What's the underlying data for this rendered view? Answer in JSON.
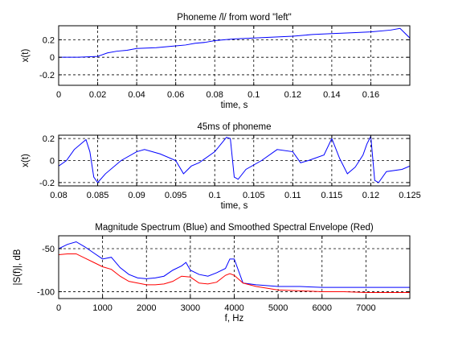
{
  "chart_data": [
    {
      "type": "line",
      "title": "Phoneme /l/ from word \"left\"",
      "xlabel": "time, s",
      "ylabel": "x(t)",
      "xlim": [
        0,
        0.18
      ],
      "ylim": [
        -0.32,
        0.36
      ],
      "xticks": [
        0,
        0.02,
        0.04,
        0.06,
        0.08,
        0.1,
        0.12,
        0.14,
        0.16
      ],
      "xtick_labels": [
        "0",
        "0.02",
        "0.04",
        "0.06",
        "0.08",
        "0.1",
        "0.12",
        "0.14",
        "0.16"
      ],
      "yticks": [
        -0.2,
        0,
        0.2
      ],
      "ytick_labels": [
        "-0.2",
        "0",
        "0.2"
      ],
      "grid": true,
      "series": [
        {
          "color": "#0000ff",
          "x": [
            0,
            0.01,
            0.02,
            0.025,
            0.03,
            0.035,
            0.04,
            0.05,
            0.06,
            0.065,
            0.07,
            0.075,
            0.08,
            0.085,
            0.09,
            0.1,
            0.11,
            0.12,
            0.13,
            0.14,
            0.15,
            0.16,
            0.17,
            0.175,
            0.18
          ],
          "y": [
            0,
            0,
            0.01,
            0.05,
            0.07,
            0.08,
            0.1,
            0.11,
            0.13,
            0.14,
            0.16,
            0.17,
            0.19,
            0.2,
            0.21,
            0.22,
            0.23,
            0.24,
            0.26,
            0.27,
            0.28,
            0.29,
            0.31,
            0.33,
            0.22
          ]
        }
      ]
    },
    {
      "type": "line",
      "title": "45ms of phoneme",
      "xlabel": "time, s",
      "ylabel": "x(t)",
      "xlim": [
        0.08,
        0.125
      ],
      "ylim": [
        -0.23,
        0.23
      ],
      "xticks": [
        0.08,
        0.085,
        0.09,
        0.095,
        0.1,
        0.105,
        0.11,
        0.115,
        0.12,
        0.125
      ],
      "xtick_labels": [
        "0.08",
        "0.085",
        "0.09",
        "0.095",
        "0.1",
        "0.105",
        "0.11",
        "0.115",
        "0.12",
        "0.125"
      ],
      "yticks": [
        -0.2,
        0,
        0.2
      ],
      "ytick_labels": [
        "-0.2",
        "0",
        "0.2"
      ],
      "grid": true,
      "series": [
        {
          "color": "#0000ff",
          "x": [
            0.08,
            0.081,
            0.082,
            0.0835,
            0.084,
            0.0845,
            0.085,
            0.086,
            0.088,
            0.09,
            0.091,
            0.093,
            0.095,
            0.096,
            0.097,
            0.098,
            0.1,
            0.1015,
            0.102,
            0.1025,
            0.103,
            0.104,
            0.106,
            0.108,
            0.11,
            0.111,
            0.112,
            0.114,
            0.115,
            0.116,
            0.117,
            0.118,
            0.119,
            0.1195,
            0.12,
            0.1205,
            0.121,
            0.122,
            0.124,
            0.125
          ],
          "y": [
            -0.05,
            0.0,
            0.1,
            0.19,
            0.08,
            -0.15,
            -0.2,
            -0.12,
            0.0,
            0.08,
            0.1,
            0.06,
            0.0,
            -0.12,
            -0.05,
            -0.02,
            0.08,
            0.21,
            0.2,
            -0.15,
            -0.17,
            -0.08,
            0.0,
            0.1,
            0.08,
            -0.02,
            0.0,
            0.05,
            0.2,
            0.02,
            -0.12,
            -0.06,
            0.05,
            0.15,
            0.22,
            -0.18,
            -0.2,
            -0.1,
            -0.08,
            -0.05
          ]
        }
      ]
    },
    {
      "type": "line",
      "title": "Magnitude Spectrum (Blue) and Smoothed Spectral Envelope (Red)",
      "xlabel": "f, Hz",
      "ylabel": "|S(f)|, dB",
      "xlim": [
        0,
        8000
      ],
      "ylim": [
        -108,
        -35
      ],
      "xticks": [
        0,
        1000,
        2000,
        3000,
        4000,
        5000,
        6000,
        7000
      ],
      "xtick_labels": [
        "0",
        "1000",
        "2000",
        "3000",
        "4000",
        "5000",
        "6000",
        "7000"
      ],
      "yticks": [
        -100,
        -50
      ],
      "ytick_labels": [
        "-100",
        "-50"
      ],
      "grid": true,
      "series": [
        {
          "color": "#0000ff",
          "x": [
            0,
            200,
            400,
            600,
            800,
            1000,
            1200,
            1400,
            1600,
            1800,
            2000,
            2200,
            2400,
            2600,
            2800,
            2900,
            3000,
            3200,
            3400,
            3600,
            3800,
            3900,
            4000,
            4200,
            4500,
            5000,
            5500,
            6000,
            6500,
            7000,
            7500,
            8000
          ],
          "y": [
            -50,
            -45,
            -42,
            -48,
            -55,
            -62,
            -60,
            -72,
            -80,
            -84,
            -85,
            -84,
            -82,
            -75,
            -70,
            -66,
            -75,
            -80,
            -82,
            -78,
            -73,
            -62,
            -62,
            -90,
            -92,
            -94,
            -94,
            -95,
            -95,
            -95,
            -95,
            -95
          ]
        },
        {
          "color": "#ff0000",
          "x": [
            0,
            200,
            400,
            600,
            800,
            1000,
            1200,
            1400,
            1600,
            1800,
            2000,
            2200,
            2400,
            2600,
            2800,
            3000,
            3200,
            3400,
            3600,
            3800,
            3900,
            4000,
            4200,
            4500,
            5000,
            5500,
            6000,
            6500,
            7000,
            7500,
            8000
          ],
          "y": [
            -57,
            -56,
            -56,
            -61,
            -66,
            -71,
            -74,
            -82,
            -88,
            -90,
            -92,
            -92,
            -91,
            -88,
            -82,
            -83,
            -90,
            -91,
            -89,
            -81,
            -79,
            -81,
            -90,
            -94,
            -98,
            -99,
            -100,
            -100,
            -101,
            -101,
            -101
          ]
        }
      ]
    }
  ]
}
